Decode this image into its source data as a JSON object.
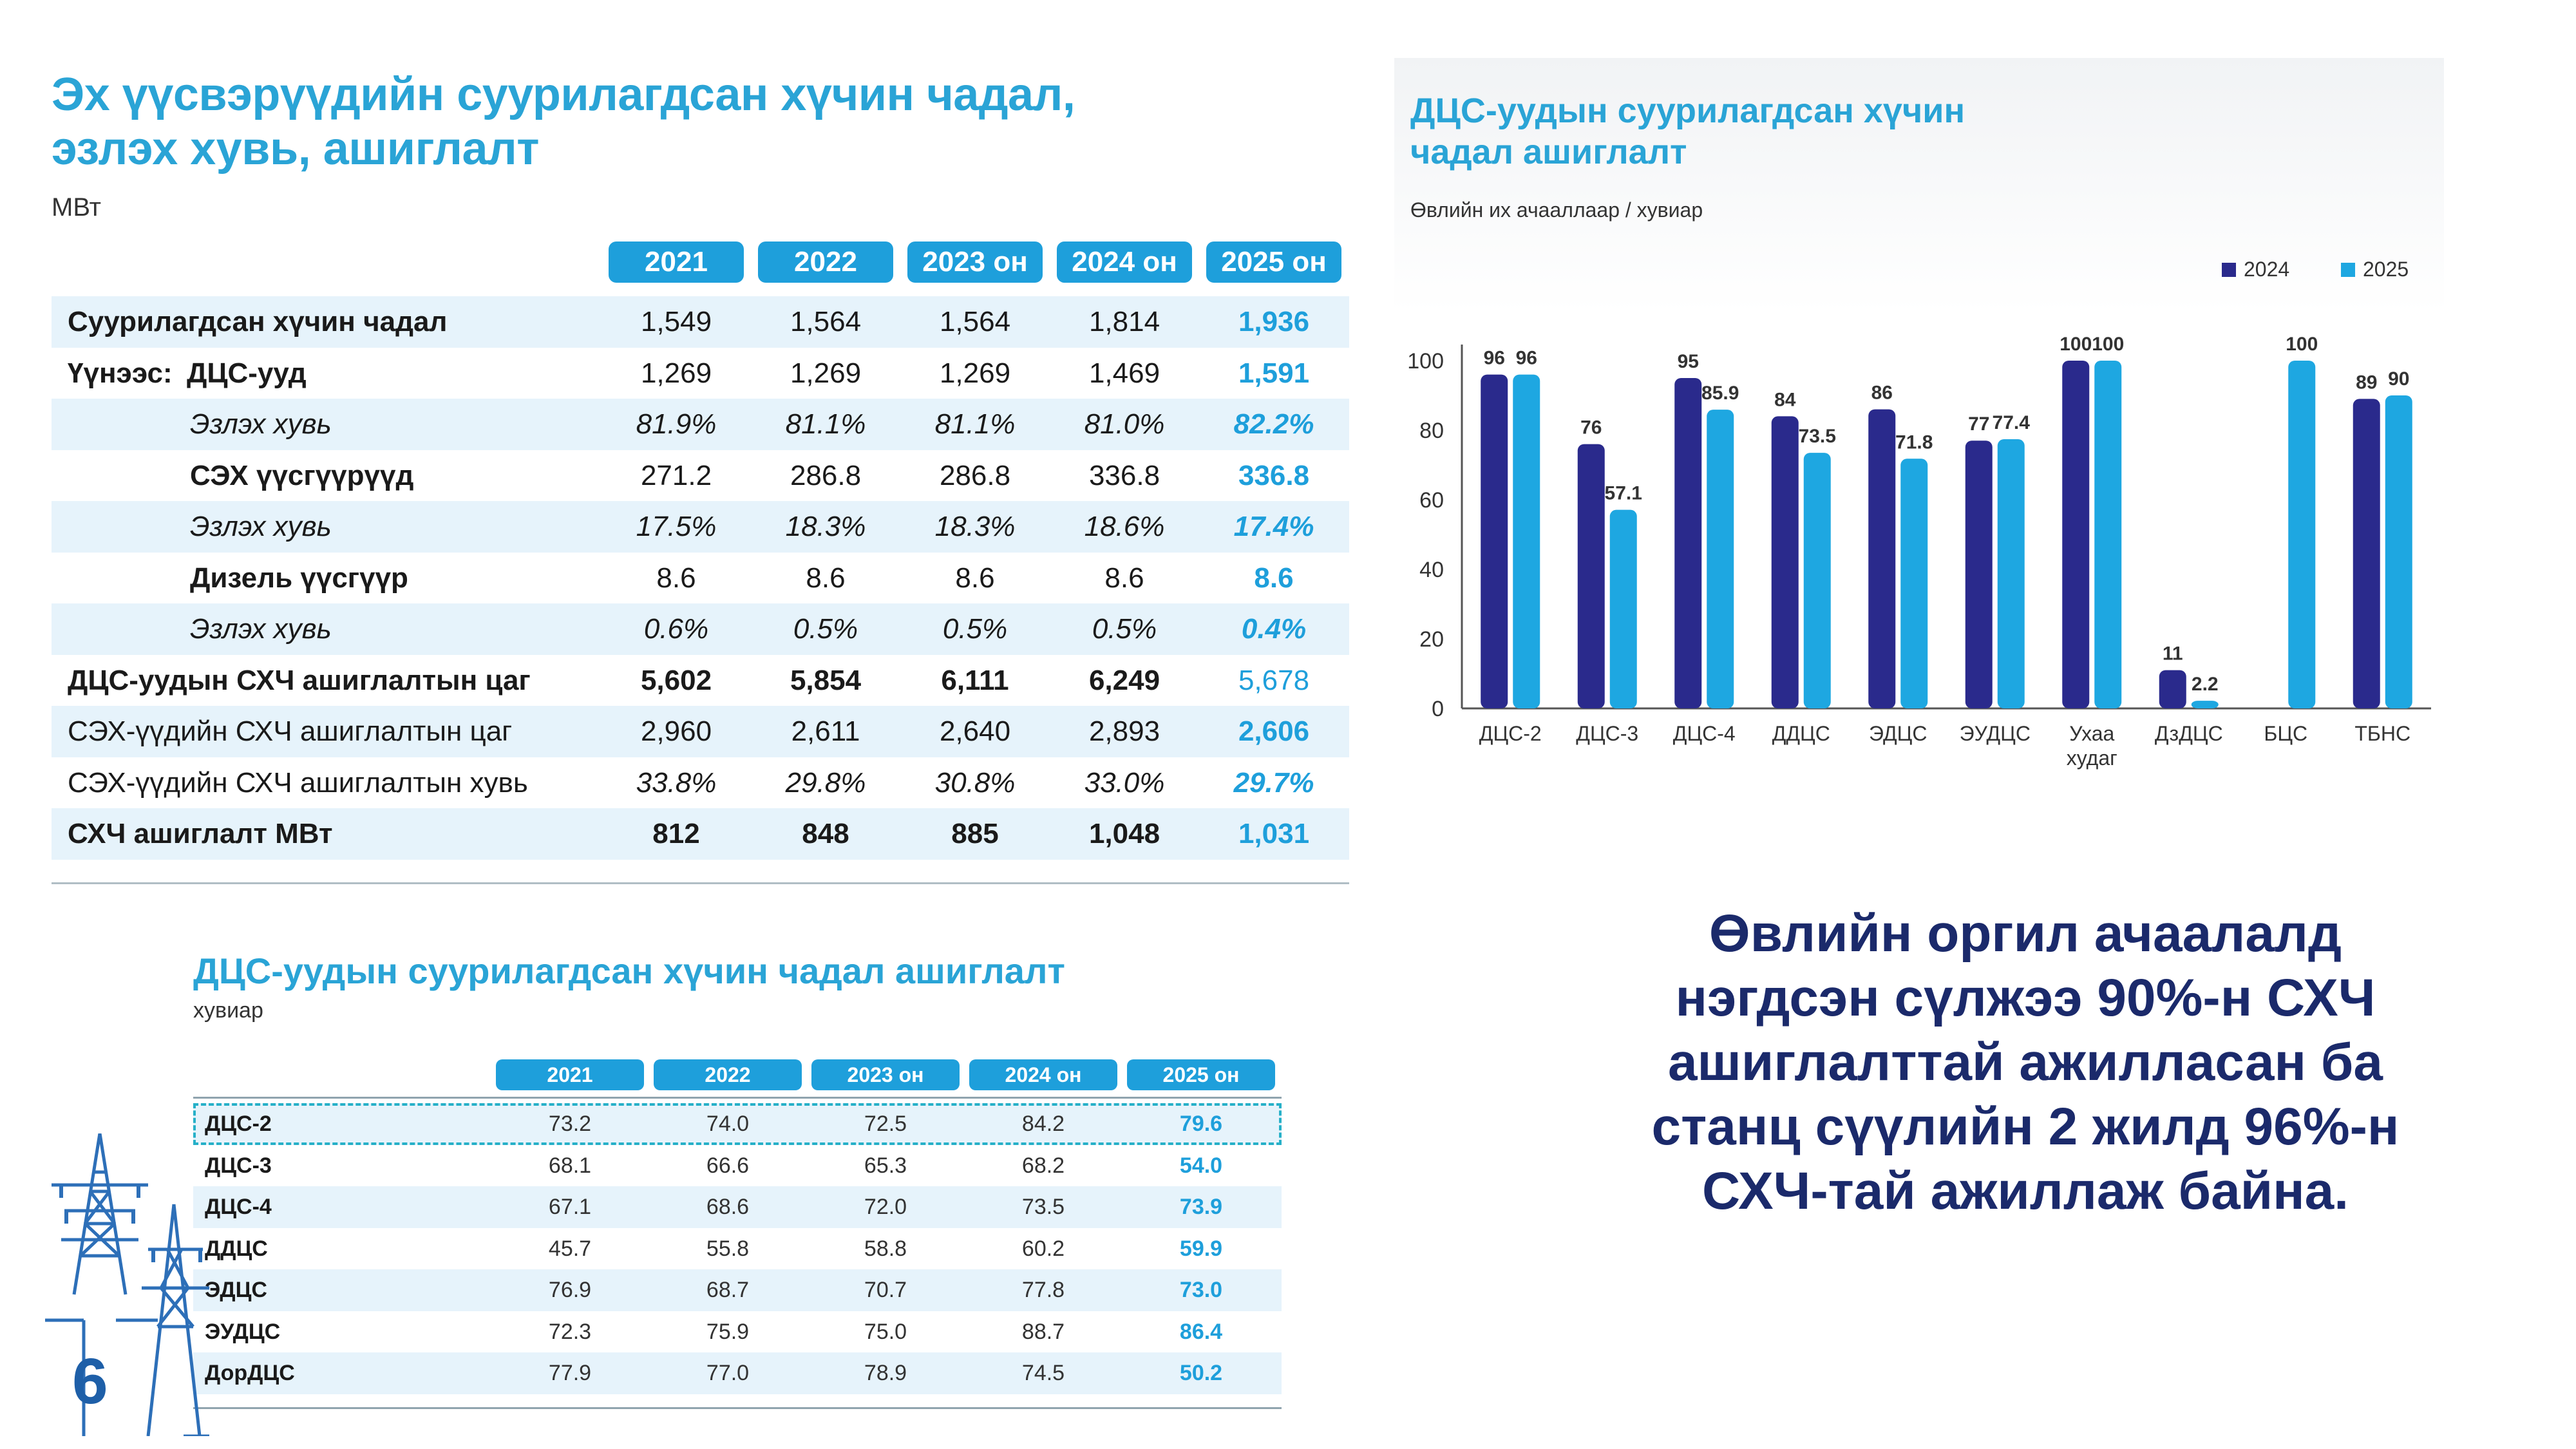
{
  "table1": {
    "title_line1": "Эх үүсвэрүүдийн суурилагдсан хүчин чадал,",
    "title_line2": "эзлэх хувь, ашиглалт",
    "unit": "МВт",
    "headers": [
      "2021",
      "2022",
      "2023 он",
      "2024 он",
      "2025 он"
    ],
    "rows": [
      {
        "prefix": "",
        "label": "Суурилагдсан хүчин чадал",
        "values": [
          "1,549",
          "1,564",
          "1,564",
          "1,814",
          "1,936"
        ]
      },
      {
        "prefix": "Үүнээс:",
        "label": "ДЦС-ууд",
        "values": [
          "1,269",
          "1,269",
          "1,269",
          "1,469",
          "1,591"
        ]
      },
      {
        "prefix": "",
        "label": "Эзлэх хувь",
        "values": [
          "81.9%",
          "81.1%",
          "81.1%",
          "81.0%",
          "82.2%"
        ]
      },
      {
        "prefix": "",
        "label": "СЭХ үүсгүүрүүд",
        "values": [
          "271.2",
          "286.8",
          "286.8",
          "336.8",
          "336.8"
        ]
      },
      {
        "prefix": "",
        "label": "Эзлэх хувь",
        "values": [
          "17.5%",
          "18.3%",
          "18.3%",
          "18.6%",
          "17.4%"
        ]
      },
      {
        "prefix": "",
        "label": "Дизель үүсгүүр",
        "values": [
          "8.6",
          "8.6",
          "8.6",
          "8.6",
          "8.6"
        ]
      },
      {
        "prefix": "",
        "label": "Эзлэх хувь",
        "values": [
          "0.6%",
          "0.5%",
          "0.5%",
          "0.5%",
          "0.4%"
        ]
      },
      {
        "prefix": "",
        "label": "ДЦС-уудын СХЧ ашиглалтын цаг",
        "values": [
          "5,602",
          "5,854",
          "6,111",
          "6,249",
          "5,678"
        ]
      },
      {
        "prefix": "",
        "label": "СЭХ-үүдийн СХЧ ашиглалтын цаг",
        "values": [
          "2,960",
          "2,611",
          "2,640",
          "2,893",
          "2,606"
        ]
      },
      {
        "prefix": "",
        "label": "СЭХ-үүдийн СХЧ ашиглалтын хувь",
        "values": [
          "33.8%",
          "29.8%",
          "30.8%",
          "33.0%",
          "29.7%"
        ]
      },
      {
        "prefix": "",
        "label": "СХЧ ашиглалт МВт",
        "values": [
          "812",
          "848",
          "885",
          "1,048",
          "1,031"
        ]
      }
    ]
  },
  "bar_chart": {
    "title_line1": "ДЦС-уудын суурилагдсан хүчин",
    "title_line2": "чадал ашиглалт",
    "subtitle": "Өвлийн их ачааллаар / хувиар",
    "legend": [
      "2024",
      "2025"
    ],
    "colors": {
      "s2024": "#2a2a8c",
      "s2025": "#1ea7e1"
    }
  },
  "chart_data": {
    "type": "bar",
    "title": "ДЦС-уудын суурилагдсан хүчин чадал ашиглалт",
    "subtitle": "Өвлийн их ачааллаар / хувиар",
    "categories": [
      "ДЦС-2",
      "ДЦС-3",
      "ДЦС-4",
      "ДДЦС",
      "ЭДЦС",
      "ЭУДЦС",
      "Ухаа худаг",
      "ДзДЦС",
      "БЦС",
      "ТБНС"
    ],
    "series": [
      {
        "name": "2024",
        "values": [
          96,
          76,
          95,
          84,
          86,
          77,
          100,
          11,
          null,
          89
        ]
      },
      {
        "name": "2025",
        "values": [
          96,
          57.1,
          85.9,
          73.5,
          71.8,
          77.4,
          100,
          2.2,
          100,
          90
        ]
      }
    ],
    "yticks": [
      0,
      20,
      40,
      60,
      80,
      100
    ],
    "ylim": [
      0,
      100
    ],
    "legend_position": "top-right",
    "grid": false
  },
  "table2": {
    "title": "ДЦС-уудын суурилагдсан хүчин чадал ашиглалт",
    "unit": "хувиар",
    "headers": [
      "2021",
      "2022",
      "2023 он",
      "2024 он",
      "2025 он"
    ],
    "rows": [
      {
        "label": "ДЦС-2",
        "values": [
          "73.2",
          "74.0",
          "72.5",
          "84.2",
          "79.6"
        ]
      },
      {
        "label": "ДЦС-3",
        "values": [
          "68.1",
          "66.6",
          "65.3",
          "68.2",
          "54.0"
        ]
      },
      {
        "label": "ДЦС-4",
        "values": [
          "67.1",
          "68.6",
          "72.0",
          "73.5",
          "73.9"
        ]
      },
      {
        "label": "ДДЦС",
        "values": [
          "45.7",
          "55.8",
          "58.8",
          "60.2",
          "59.9"
        ]
      },
      {
        "label": "ЭДЦС",
        "values": [
          "76.9",
          "68.7",
          "70.7",
          "77.8",
          "73.0"
        ]
      },
      {
        "label": "ЭУДЦС",
        "values": [
          "72.3",
          "75.9",
          "75.0",
          "88.7",
          "86.4"
        ]
      },
      {
        "label": "ДорДЦС",
        "values": [
          "77.9",
          "77.0",
          "78.9",
          "74.5",
          "50.2"
        ]
      }
    ]
  },
  "message": {
    "lines": [
      "Өвлийн оргил ачаалалд",
      "нэгдсэн сүлжээ 90%-н СХЧ",
      "ашиглалттай ажилласан ба",
      "станц сүүлийн 2 жилд 96%-н",
      "СХЧ-тай ажиллаж байна."
    ]
  },
  "page_number": "6"
}
